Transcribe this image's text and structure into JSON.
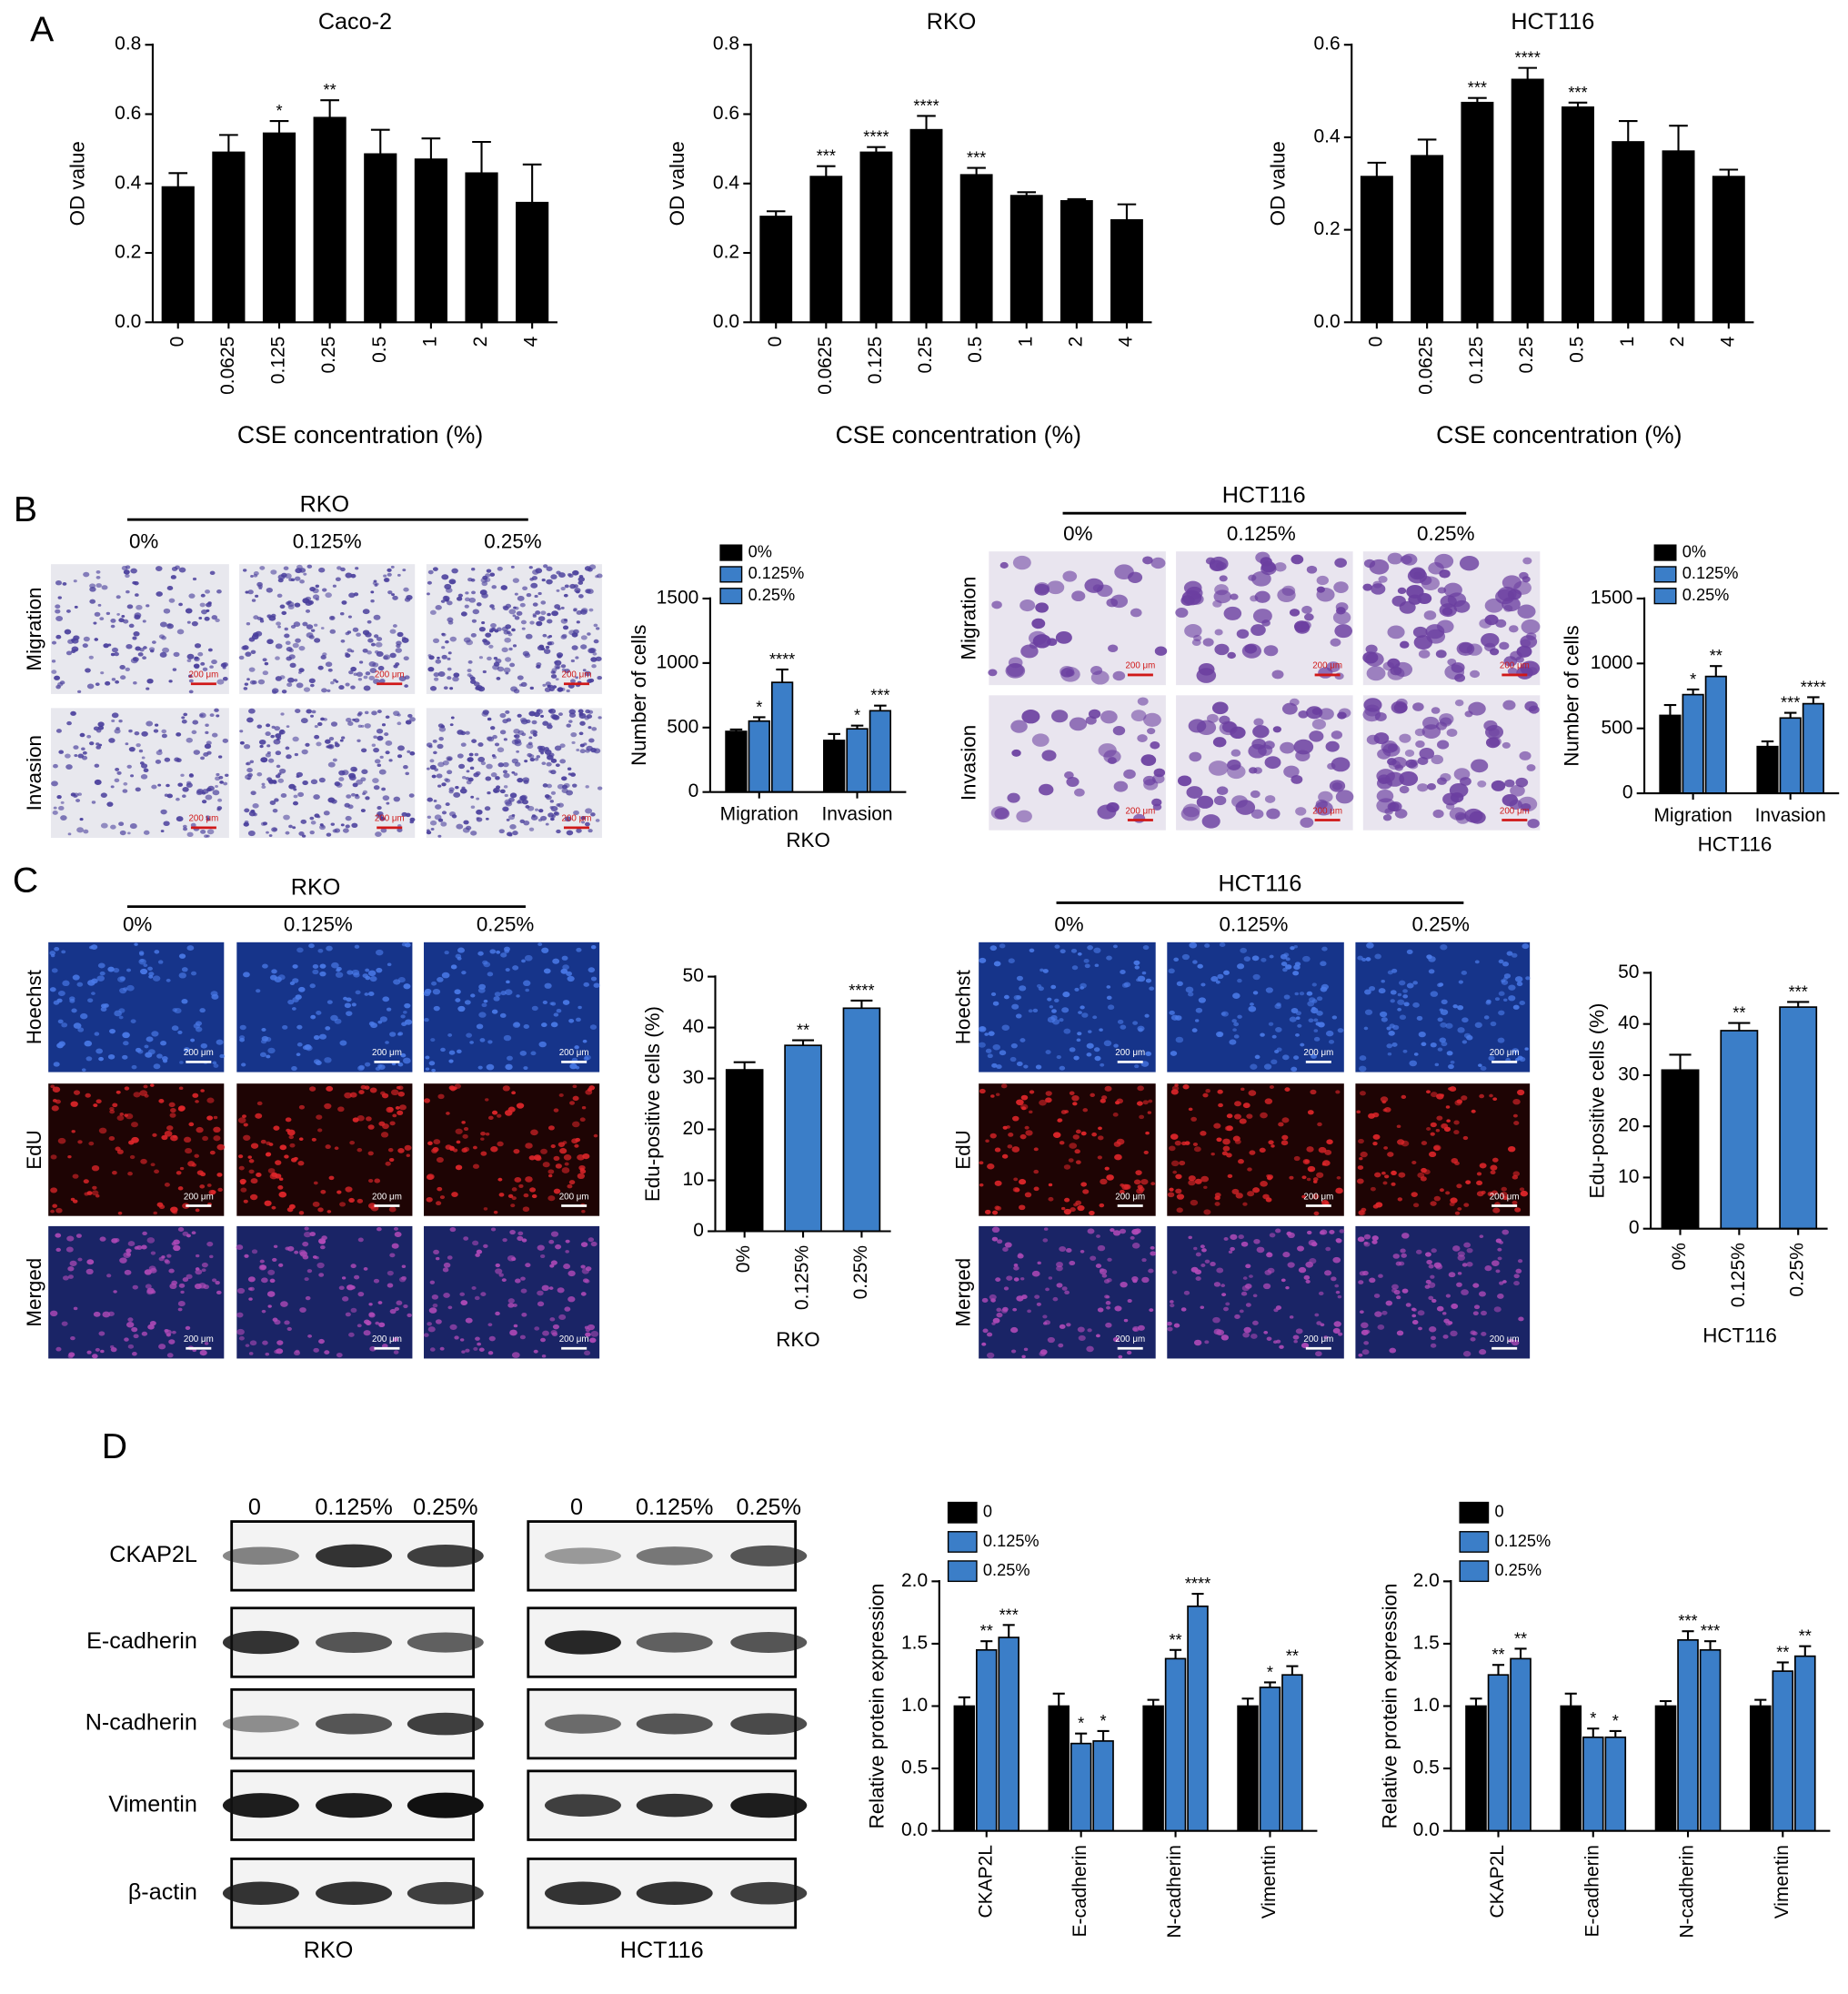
{
  "panel_labels": [
    "A",
    "B",
    "C",
    "D"
  ],
  "chart_data": [
    {
      "type": "bar",
      "title": "Caco-2",
      "x_label": "CSE concentration (%)",
      "y_label": "OD value",
      "categories": [
        "0",
        "0.0625",
        "0.125",
        "0.25",
        "0.5",
        "1",
        "2",
        "4"
      ],
      "values": [
        0.39,
        0.49,
        0.545,
        0.59,
        0.485,
        0.47,
        0.43,
        0.345
      ],
      "errors": [
        0.04,
        0.05,
        0.035,
        0.05,
        0.07,
        0.06,
        0.09,
        0.11
      ],
      "significance": [
        null,
        null,
        "*",
        "**",
        null,
        null,
        null,
        null
      ],
      "color": "#000000",
      "ylim": [
        0,
        0.8
      ],
      "yticks": [
        {
          "value": 0,
          "label": "0.0"
        },
        0.2,
        0.4,
        0.6,
        0.8
      ]
    },
    {
      "type": "bar",
      "title": "RKO",
      "x_label": "CSE concentration (%)",
      "y_label": "OD value",
      "categories": [
        "0",
        "0.0625",
        "0.125",
        "0.25",
        "0.5",
        "1",
        "2",
        "4"
      ],
      "values": [
        0.305,
        0.42,
        0.49,
        0.555,
        0.425,
        0.365,
        0.35,
        0.295
      ],
      "errors": [
        0.015,
        0.03,
        0.015,
        0.04,
        0.02,
        0.01,
        0.005,
        0.045
      ],
      "significance": [
        null,
        "***",
        "****",
        "****",
        "***",
        null,
        null,
        null
      ],
      "color": "#000000",
      "ylim": [
        0,
        0.8
      ],
      "yticks": [
        {
          "value": 0,
          "label": "0.0"
        },
        0.2,
        0.4,
        0.6,
        0.8
      ]
    },
    {
      "type": "bar",
      "title": "HCT116",
      "x_label": "CSE concentration (%)",
      "y_label": "OD value",
      "categories": [
        "0",
        "0.0625",
        "0.125",
        "0.25",
        "0.5",
        "1",
        "2",
        "4"
      ],
      "values": [
        0.315,
        0.36,
        0.475,
        0.525,
        0.465,
        0.39,
        0.37,
        0.315
      ],
      "errors": [
        0.03,
        0.035,
        0.01,
        0.025,
        0.01,
        0.045,
        0.055,
        0.015
      ],
      "significance": [
        null,
        null,
        "***",
        "****",
        "***",
        null,
        null,
        null
      ],
      "color": "#000000",
      "ylim": [
        0,
        0.6
      ],
      "yticks": [
        {
          "value": 0,
          "label": "0.0"
        },
        0.2,
        0.4,
        0.6
      ]
    },
    {
      "type": "grouped_bar",
      "x_label": "RKO",
      "y_label": "Number of cells",
      "legend": "top",
      "categories": [
        "Migration",
        "Invasion"
      ],
      "series": [
        {
          "name": "0%",
          "color": "#000000",
          "values": [
            470,
            400
          ],
          "errors": [
            15,
            50
          ],
          "significance": [
            null,
            null
          ]
        },
        {
          "name": "0.125%",
          "color": "#3b7ec8",
          "values": [
            550,
            490
          ],
          "errors": [
            30,
            25
          ],
          "significance": [
            "*",
            "*"
          ]
        },
        {
          "name": "0.25%",
          "color": "#3b7ec8",
          "values": [
            850,
            630
          ],
          "errors": [
            100,
            40
          ],
          "significance": [
            "****",
            "***"
          ]
        }
      ],
      "ylim": [
        0,
        1500
      ],
      "yticks": [
        0,
        500,
        1000,
        1500
      ]
    },
    {
      "type": "grouped_bar",
      "x_label": "HCT116",
      "y_label": "Number of cells",
      "legend": "top",
      "categories": [
        "Migration",
        "Invasion"
      ],
      "series": [
        {
          "name": "0%",
          "color": "#000000",
          "values": [
            600,
            360
          ],
          "errors": [
            80,
            40
          ],
          "significance": [
            null,
            null
          ]
        },
        {
          "name": "0.125%",
          "color": "#3b7ec8",
          "values": [
            760,
            580
          ],
          "errors": [
            40,
            40
          ],
          "significance": [
            "*",
            "***"
          ]
        },
        {
          "name": "0.25%",
          "color": "#3b7ec8",
          "values": [
            900,
            690
          ],
          "errors": [
            80,
            50
          ],
          "significance": [
            "**",
            "****"
          ]
        }
      ],
      "ylim": [
        0,
        1500
      ],
      "yticks": [
        0,
        500,
        1000,
        1500
      ]
    },
    {
      "type": "bar",
      "x_label": "RKO",
      "y_label": "Edu-positive cells (%)",
      "categories": [
        "0%",
        "0.125%",
        "0.25%"
      ],
      "values": [
        31.7,
        36.5,
        43.8
      ],
      "errors": [
        1.5,
        1,
        1.5
      ],
      "significance": [
        null,
        "**",
        "****"
      ],
      "colors": [
        "#000000",
        "#3b7ec8",
        "#3b7ec8"
      ],
      "ylim": [
        0,
        50
      ],
      "yticks": [
        0,
        10,
        20,
        30,
        40,
        50
      ]
    },
    {
      "type": "bar",
      "x_label": "HCT116",
      "y_label": "Edu-positive cells (%)",
      "categories": [
        "0%",
        "0.125%",
        "0.25%"
      ],
      "values": [
        31,
        38.7,
        43.3
      ],
      "errors": [
        3,
        1.5,
        1
      ],
      "significance": [
        null,
        "**",
        "***"
      ],
      "colors": [
        "#000000",
        "#3b7ec8",
        "#3b7ec8"
      ],
      "ylim": [
        0,
        50
      ],
      "yticks": [
        0,
        10,
        20,
        30,
        40,
        50
      ]
    },
    {
      "type": "grouped_bar",
      "x_label": "RKO",
      "y_label": "Relative protein expression",
      "legend": "top",
      "categories": [
        "CKAP2L",
        "E-cadherin",
        "N-cadherin",
        "Vimentin"
      ],
      "series": [
        {
          "name": "0",
          "color": "#000000",
          "values": [
            1,
            1,
            1,
            1
          ],
          "errors": [
            0.07,
            0.1,
            0.05,
            0.06
          ],
          "significance": [
            null,
            null,
            null,
            null
          ]
        },
        {
          "name": "0.125%",
          "color": "#3b7ec8",
          "values": [
            1.45,
            0.7,
            1.38,
            1.15
          ],
          "errors": [
            0.07,
            0.08,
            0.07,
            0.04
          ],
          "significance": [
            "**",
            "*",
            "**",
            "*"
          ]
        },
        {
          "name": "0.25%",
          "color": "#3b7ec8",
          "values": [
            1.55,
            0.72,
            1.8,
            1.25
          ],
          "errors": [
            0.1,
            0.08,
            0.1,
            0.07
          ],
          "significance": [
            "***",
            "*",
            "****",
            "**"
          ]
        }
      ],
      "ylim": [
        0,
        2
      ],
      "yticks": [
        {
          "value": 0,
          "label": "0.0"
        },
        0.5,
        {
          "value": 1,
          "label": "1.0"
        },
        1.5,
        {
          "value": 2,
          "label": "2.0"
        }
      ]
    },
    {
      "type": "grouped_bar",
      "x_label": "HCT116",
      "y_label": "Relative protein expression",
      "legend": "top",
      "categories": [
        "CKAP2L",
        "E-cadherin",
        "N-cadherin",
        "Vimentin"
      ],
      "series": [
        {
          "name": "0",
          "color": "#000000",
          "values": [
            1,
            1,
            1,
            1
          ],
          "errors": [
            0.06,
            0.1,
            0.04,
            0.05
          ],
          "significance": [
            null,
            null,
            null,
            null
          ]
        },
        {
          "name": "0.125%",
          "color": "#3b7ec8",
          "values": [
            1.25,
            0.75,
            1.53,
            1.28
          ],
          "errors": [
            0.08,
            0.07,
            0.07,
            0.07
          ],
          "significance": [
            "**",
            "*",
            "***",
            "**"
          ]
        },
        {
          "name": "0.25%",
          "color": "#3b7ec8",
          "values": [
            1.38,
            0.75,
            1.45,
            1.4
          ],
          "errors": [
            0.08,
            0.05,
            0.07,
            0.08
          ],
          "significance": [
            "**",
            "*",
            "***",
            "**"
          ]
        }
      ],
      "ylim": [
        0,
        2
      ],
      "yticks": [
        {
          "value": 0,
          "label": "0.0"
        },
        0.5,
        {
          "value": 1,
          "label": "1.0"
        },
        1.5,
        {
          "value": 2,
          "label": "2.0"
        }
      ]
    }
  ],
  "microscopy": [
    {
      "title": "RKO",
      "columns": [
        "0%",
        "0.125%",
        "0.25%"
      ],
      "rows": [
        "Migration",
        "Invasion"
      ],
      "scale_bar": "200 μm"
    },
    {
      "title": "HCT116",
      "columns": [
        "0%",
        "0.125%",
        "0.25%"
      ],
      "rows": [
        "Migration",
        "Invasion"
      ],
      "scale_bar": "200 μm"
    },
    {
      "title": "RKO",
      "columns": [
        "0%",
        "0.125%",
        "0.25%"
      ],
      "rows": [
        "Hoechst",
        "EdU",
        "Merged"
      ],
      "scale_bar": "200 μm"
    },
    {
      "title": "HCT116",
      "columns": [
        "0%",
        "0.125%",
        "0.25%"
      ],
      "rows": [
        "Hoechst",
        "EdU",
        "Merged"
      ],
      "scale_bar": "200 μm"
    }
  ],
  "western_blots": {
    "proteins": [
      "CKAP2L",
      "E-cadherin",
      "N-cadherin",
      "Vimentin",
      "β-actin"
    ],
    "blots": [
      {
        "caption": "RKO",
        "lanes": [
          "0",
          "0.125%",
          "0.25%"
        ]
      },
      {
        "caption": "HCT116",
        "lanes": [
          "0",
          "0.125%",
          "0.25%"
        ]
      }
    ]
  }
}
